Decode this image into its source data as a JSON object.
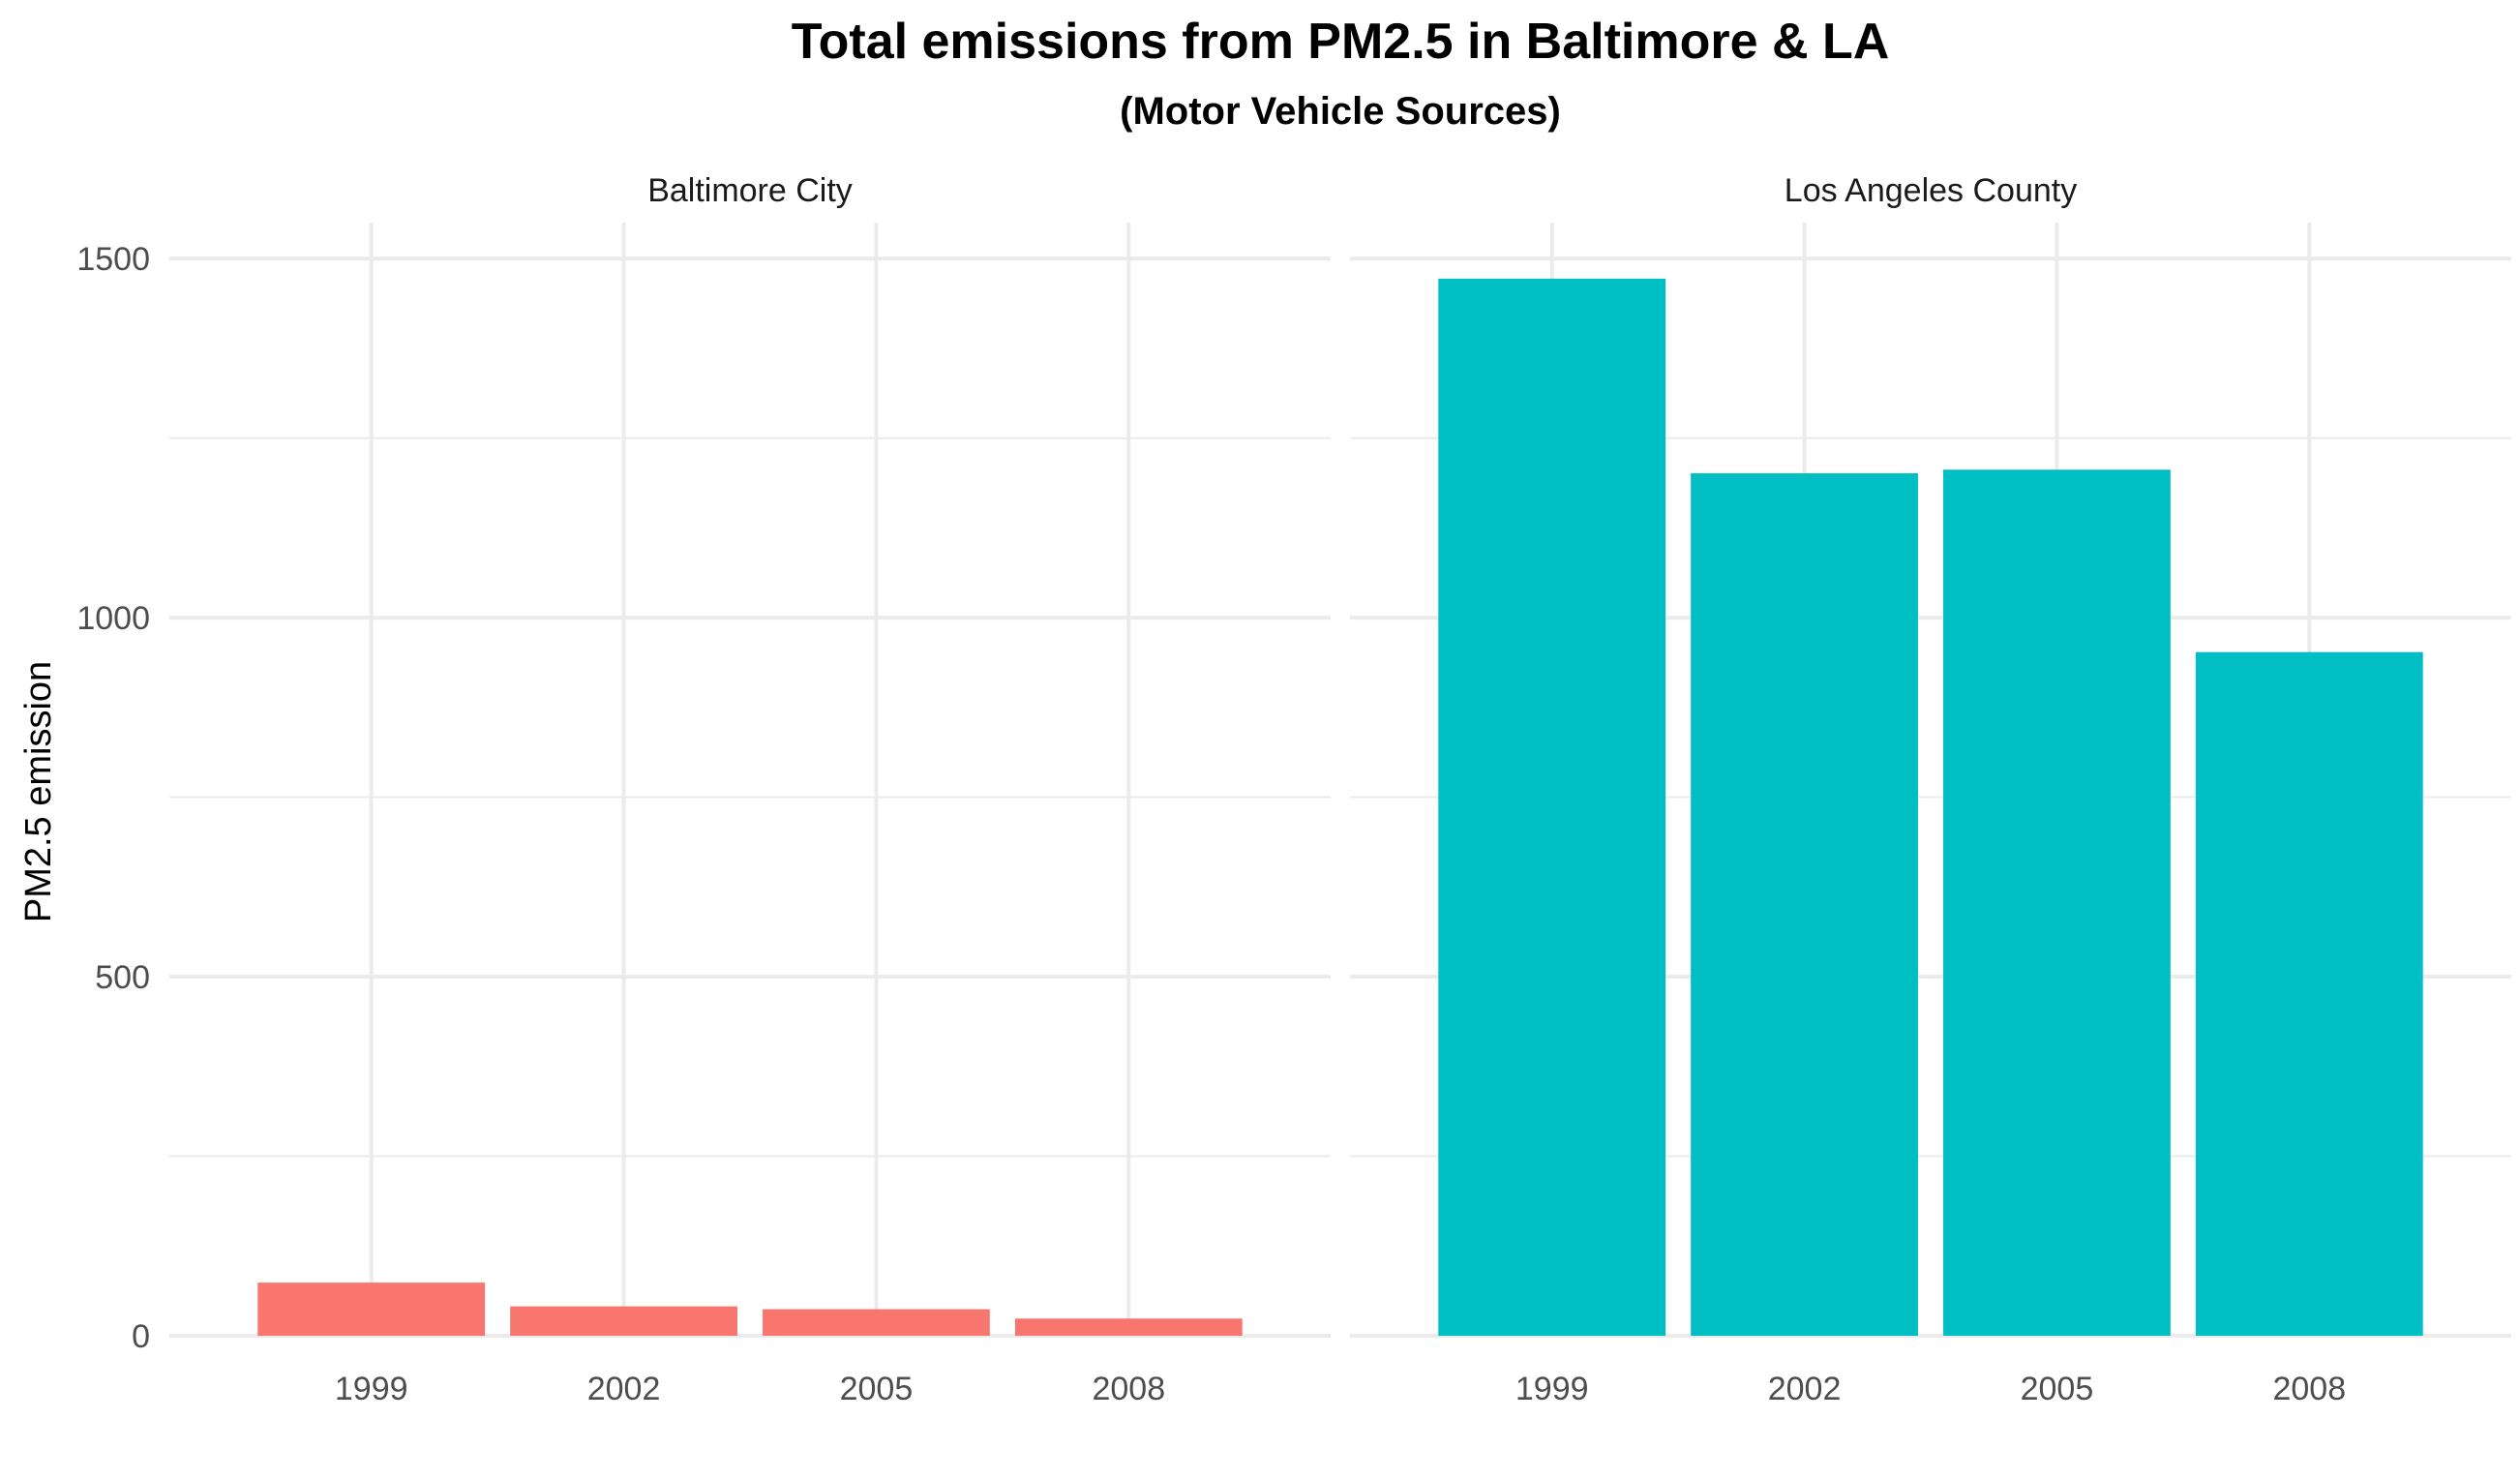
{
  "chart_data": {
    "type": "bar",
    "title": "Total emissions from PM2.5 in Baltimore & LA",
    "subtitle": "(Motor Vehicle Sources)",
    "xlabel": "",
    "ylabel": "PM2.5 emission",
    "ylim": [
      0,
      1550
    ],
    "y_ticks": [
      0,
      500,
      1000,
      1500
    ],
    "grid": true,
    "legend": "none",
    "categories": [
      "1999",
      "2002",
      "2005",
      "2008"
    ],
    "facets": [
      {
        "name": "Baltimore City",
        "color": "#F8766D",
        "values": [
          74,
          41,
          37,
          24
        ]
      },
      {
        "name": "Los Angeles County",
        "color": "#00BFC4",
        "values": [
          1472,
          1201,
          1206,
          952
        ]
      }
    ]
  },
  "colors": {
    "grid": "#EBEBEB",
    "tick_text": "#4D4D4D",
    "text": "#000000"
  }
}
